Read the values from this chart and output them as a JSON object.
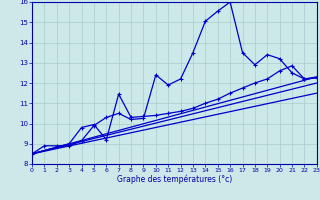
{
  "xlabel": "Graphe des températures (°c)",
  "bg_color": "#cce8e8",
  "grid_color": "#aacccc",
  "line_color": "#0000cc",
  "x_min": 0,
  "x_max": 23,
  "y_min": 8,
  "y_max": 16,
  "yticks": [
    8,
    9,
    10,
    11,
    12,
    13,
    14,
    15,
    16
  ],
  "xticks": [
    0,
    1,
    2,
    3,
    4,
    5,
    6,
    7,
    8,
    9,
    10,
    11,
    12,
    13,
    14,
    15,
    16,
    17,
    18,
    19,
    20,
    21,
    22,
    23
  ],
  "series1_x": [
    0,
    1,
    2,
    3,
    4,
    5,
    6,
    7,
    8,
    9,
    10,
    11,
    12,
    13,
    14,
    15,
    16,
    17,
    18,
    19,
    20,
    21,
    22,
    23
  ],
  "series1_y": [
    8.5,
    8.9,
    8.9,
    8.9,
    9.15,
    9.9,
    10.3,
    10.5,
    10.2,
    10.25,
    12.4,
    11.9,
    12.2,
    13.5,
    15.05,
    15.55,
    16.0,
    13.5,
    12.9,
    13.4,
    13.2,
    12.5,
    12.2,
    12.3
  ],
  "series2_x": [
    0,
    3,
    4,
    5,
    6,
    7,
    8,
    9,
    10,
    11,
    12,
    13,
    14,
    15,
    16,
    17,
    18,
    19,
    20,
    21,
    22,
    23
  ],
  "series2_y": [
    8.5,
    9.0,
    9.8,
    9.95,
    9.2,
    11.45,
    10.3,
    10.35,
    10.4,
    10.5,
    10.6,
    10.75,
    11.0,
    11.2,
    11.5,
    11.75,
    12.0,
    12.2,
    12.6,
    12.85,
    12.2,
    12.25
  ],
  "series3_x": [
    0,
    23
  ],
  "series3_y": [
    8.5,
    12.0
  ],
  "series4_x": [
    0,
    23
  ],
  "series4_y": [
    8.5,
    11.5
  ],
  "series5_x": [
    0,
    23
  ],
  "series5_y": [
    8.5,
    12.3
  ]
}
